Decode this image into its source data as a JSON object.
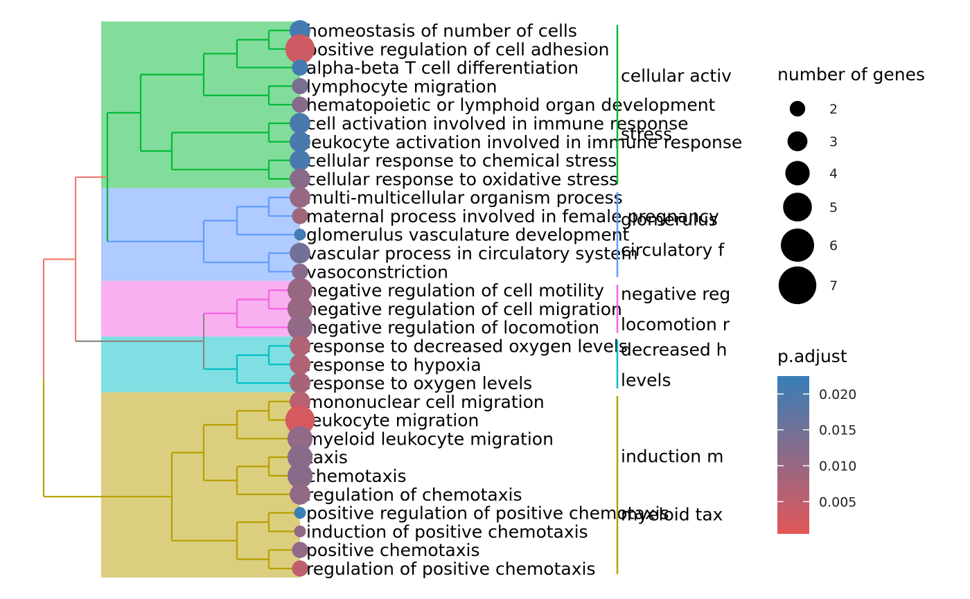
{
  "chart_data": {
    "type": "scatter",
    "subtype": "enrichment-tree-plot",
    "title": "",
    "xlabel": "",
    "ylabel": "",
    "terms": [
      {
        "label": "homeostasis of number of cells",
        "count": 3,
        "p_adjust": 0.021
      },
      {
        "label": "positive regulation of cell adhesion",
        "count": 5,
        "p_adjust": 0.003
      },
      {
        "label": "alpha-beta T cell differentiation",
        "count": 2,
        "p_adjust": 0.021
      },
      {
        "label": "lymphocyte migration",
        "count": 2,
        "p_adjust": 0.014
      },
      {
        "label": "hematopoietic or lymphoid organ development",
        "count": 2,
        "p_adjust": 0.012
      },
      {
        "label": "cell activation involved in immune response",
        "count": 3,
        "p_adjust": 0.02
      },
      {
        "label": "leukocyte activation involved in immune response",
        "count": 3,
        "p_adjust": 0.02
      },
      {
        "label": "cellular response to chemical stress",
        "count": 3,
        "p_adjust": 0.02
      },
      {
        "label": "cellular response to oxidative stress",
        "count": 3,
        "p_adjust": 0.012
      },
      {
        "label": "multi-multicellular organism process",
        "count": 3,
        "p_adjust": 0.01
      },
      {
        "label": "maternal process involved in female pregnancy",
        "count": 2,
        "p_adjust": 0.009
      },
      {
        "label": "glomerulus vasculature development",
        "count": 1,
        "p_adjust": 0.021
      },
      {
        "label": "vascular process in circulatory system",
        "count": 3,
        "p_adjust": 0.015
      },
      {
        "label": "vasoconstriction",
        "count": 2,
        "p_adjust": 0.012
      },
      {
        "label": "negative regulation of cell motility",
        "count": 4,
        "p_adjust": 0.01
      },
      {
        "label": "negative regulation of cell migration",
        "count": 4,
        "p_adjust": 0.01
      },
      {
        "label": "negative regulation of locomotion",
        "count": 4,
        "p_adjust": 0.011
      },
      {
        "label": "response to decreased oxygen levels",
        "count": 3,
        "p_adjust": 0.007
      },
      {
        "label": "response to hypoxia",
        "count": 3,
        "p_adjust": 0.007
      },
      {
        "label": "response to oxygen levels",
        "count": 3,
        "p_adjust": 0.008
      },
      {
        "label": "mononuclear cell migration",
        "count": 3,
        "p_adjust": 0.006
      },
      {
        "label": "leukocyte migration",
        "count": 5,
        "p_adjust": 0.002
      },
      {
        "label": "myeloid leukocyte migration",
        "count": 4,
        "p_adjust": 0.011
      },
      {
        "label": "taxis",
        "count": 4,
        "p_adjust": 0.012
      },
      {
        "label": "chemotaxis",
        "count": 4,
        "p_adjust": 0.012
      },
      {
        "label": "regulation of chemotaxis",
        "count": 3,
        "p_adjust": 0.011
      },
      {
        "label": "positive regulation of positive chemotaxis",
        "count": 1,
        "p_adjust": 0.022
      },
      {
        "label": "induction of positive chemotaxis",
        "count": 1,
        "p_adjust": 0.011
      },
      {
        "label": "positive chemotaxis",
        "count": 2,
        "p_adjust": 0.011
      },
      {
        "label": "regulation of positive chemotaxis",
        "count": 2,
        "p_adjust": 0.005
      }
    ],
    "clusters": [
      {
        "color": "#00ba38",
        "bg": "#82dc9b",
        "start": 0,
        "end": 8,
        "labels": [
          "cellular activ",
          "stress"
        ]
      },
      {
        "color": "#619cff",
        "bg": "#afcbff",
        "start": 9,
        "end": 13,
        "labels": [
          "glomerulus",
          "circulatory f"
        ]
      },
      {
        "color": "#f564e3",
        "bg": "#f9b0f0",
        "start": 14,
        "end": 16,
        "labels": [
          "negative reg",
          "locomotion r"
        ]
      },
      {
        "color": "#00bfc4",
        "bg": "#80dfe2",
        "start": 17,
        "end": 19,
        "labels": [
          "decreased h",
          "levels"
        ]
      },
      {
        "color": "#b79f00",
        "bg": "#dbcf7f",
        "start": 20,
        "end": 29,
        "labels": [
          "induction m",
          "myeloid tax"
        ]
      }
    ],
    "root_color": "#f8766d",
    "legend_size": {
      "title": "number of genes",
      "values": [
        2,
        3,
        4,
        5,
        6,
        7
      ]
    },
    "legend_color": {
      "title": "p.adjust",
      "ticks": [
        0.02,
        0.015,
        0.01,
        0.005
      ],
      "tick_labels": [
        "0.020",
        "0.015",
        "0.010",
        "0.005"
      ],
      "range": [
        0.0005,
        0.0225
      ],
      "low_color": "#e15759",
      "high_color": "#377eb8"
    }
  }
}
